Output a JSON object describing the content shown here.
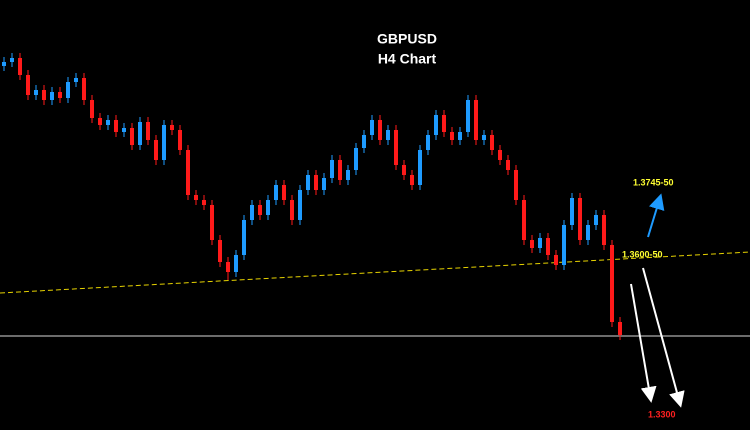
{
  "chart_data": {
    "type": "candlestick",
    "title": "GBPUSD",
    "subtitle": "H4 Chart",
    "ylim": [
      1.3256,
      1.4116
    ],
    "up_color": "#1e9bff",
    "down_color": "#ff1a1a",
    "open": [
      1.3984,
      1.3992,
      1.4,
      1.3966,
      1.3926,
      1.3936,
      1.3916,
      1.3932,
      1.392,
      1.3952,
      1.396,
      1.3916,
      1.388,
      1.3866,
      1.3876,
      1.3852,
      1.386,
      1.3826,
      1.3872,
      1.3836,
      1.3796,
      1.3866,
      1.3856,
      1.3816,
      1.3726,
      1.3716,
      1.3706,
      1.3636,
      1.3592,
      1.3572,
      1.3606,
      1.3676,
      1.3706,
      1.3686,
      1.3716,
      1.3746,
      1.3716,
      1.3676,
      1.3736,
      1.3766,
      1.3736,
      1.376,
      1.3796,
      1.3756,
      1.3776,
      1.382,
      1.3846,
      1.3876,
      1.3836,
      1.3856,
      1.3786,
      1.3766,
      1.3746,
      1.3816,
      1.3846,
      1.3886,
      1.3852,
      1.3836,
      1.3852,
      1.3916,
      1.3836,
      1.3846,
      1.3816,
      1.3796,
      1.3776,
      1.3716,
      1.3636,
      1.362,
      1.364,
      1.3606,
      1.3586,
      1.3666,
      1.372,
      1.3636,
      1.3666,
      1.3686,
      1.3626,
      1.3472
    ],
    "high": [
      1.4002,
      1.401,
      1.401,
      1.3976,
      1.3946,
      1.3946,
      1.3942,
      1.3942,
      1.3962,
      1.397,
      1.397,
      1.3926,
      1.389,
      1.3886,
      1.3886,
      1.387,
      1.387,
      1.3882,
      1.3882,
      1.3846,
      1.3876,
      1.3876,
      1.3866,
      1.3826,
      1.3736,
      1.3726,
      1.3716,
      1.3646,
      1.3602,
      1.3616,
      1.3686,
      1.3716,
      1.3716,
      1.3726,
      1.3756,
      1.3756,
      1.3726,
      1.3746,
      1.3776,
      1.3776,
      1.377,
      1.3806,
      1.3806,
      1.3786,
      1.383,
      1.3856,
      1.3886,
      1.3886,
      1.3866,
      1.3866,
      1.3796,
      1.3776,
      1.3826,
      1.3856,
      1.3896,
      1.3896,
      1.3862,
      1.3862,
      1.3926,
      1.3926,
      1.3856,
      1.3856,
      1.3826,
      1.3806,
      1.3786,
      1.3726,
      1.3646,
      1.365,
      1.365,
      1.3616,
      1.3676,
      1.373,
      1.373,
      1.3676,
      1.3696,
      1.3696,
      1.3636,
      1.3482
    ],
    "low": [
      1.3974,
      1.3982,
      1.3956,
      1.3916,
      1.3916,
      1.3906,
      1.3906,
      1.391,
      1.391,
      1.3942,
      1.3906,
      1.387,
      1.3856,
      1.3856,
      1.3842,
      1.3842,
      1.3816,
      1.3816,
      1.3826,
      1.3786,
      1.3786,
      1.3846,
      1.3806,
      1.3716,
      1.3706,
      1.3696,
      1.3626,
      1.3582,
      1.3556,
      1.3562,
      1.3596,
      1.3666,
      1.3676,
      1.3676,
      1.3706,
      1.3706,
      1.3666,
      1.3666,
      1.3726,
      1.3726,
      1.3726,
      1.375,
      1.3746,
      1.3746,
      1.3766,
      1.381,
      1.3836,
      1.3826,
      1.3826,
      1.3776,
      1.3756,
      1.3736,
      1.3736,
      1.3806,
      1.3836,
      1.3842,
      1.3826,
      1.3826,
      1.3842,
      1.3826,
      1.3826,
      1.3806,
      1.3786,
      1.3766,
      1.3706,
      1.3626,
      1.361,
      1.361,
      1.3596,
      1.3576,
      1.3576,
      1.3656,
      1.3626,
      1.3626,
      1.3656,
      1.3616,
      1.3462,
      1.3436
    ],
    "close": [
      1.3992,
      1.4,
      1.3966,
      1.3926,
      1.3936,
      1.3916,
      1.3932,
      1.392,
      1.3952,
      1.396,
      1.3916,
      1.388,
      1.3866,
      1.3876,
      1.3852,
      1.386,
      1.3826,
      1.3872,
      1.3836,
      1.3796,
      1.3866,
      1.3856,
      1.3816,
      1.3726,
      1.3716,
      1.3706,
      1.3636,
      1.3592,
      1.3572,
      1.3606,
      1.3676,
      1.3706,
      1.3686,
      1.3716,
      1.3746,
      1.3716,
      1.3676,
      1.3736,
      1.3766,
      1.3736,
      1.376,
      1.3796,
      1.3756,
      1.3776,
      1.382,
      1.3846,
      1.3876,
      1.3836,
      1.3856,
      1.3786,
      1.3766,
      1.3746,
      1.3816,
      1.3846,
      1.3886,
      1.3852,
      1.3836,
      1.3852,
      1.3916,
      1.3836,
      1.3846,
      1.3816,
      1.3796,
      1.3776,
      1.3716,
      1.3636,
      1.362,
      1.364,
      1.3606,
      1.3586,
      1.3666,
      1.372,
      1.3636,
      1.3666,
      1.3686,
      1.3626,
      1.3472,
      1.3446
    ],
    "hline": {
      "value": 1.3444,
      "color": "#d8d8d8"
    },
    "trendline": {
      "values": [
        1.353,
        1.3612
      ],
      "color": "#e6d200"
    },
    "annotations": [
      {
        "text": "1.3745-50",
        "color": "#ffff33"
      },
      {
        "text": "1.3600-50",
        "color": "#ffff33"
      },
      {
        "text": "1.3300",
        "color": "#ff2020"
      }
    ]
  }
}
